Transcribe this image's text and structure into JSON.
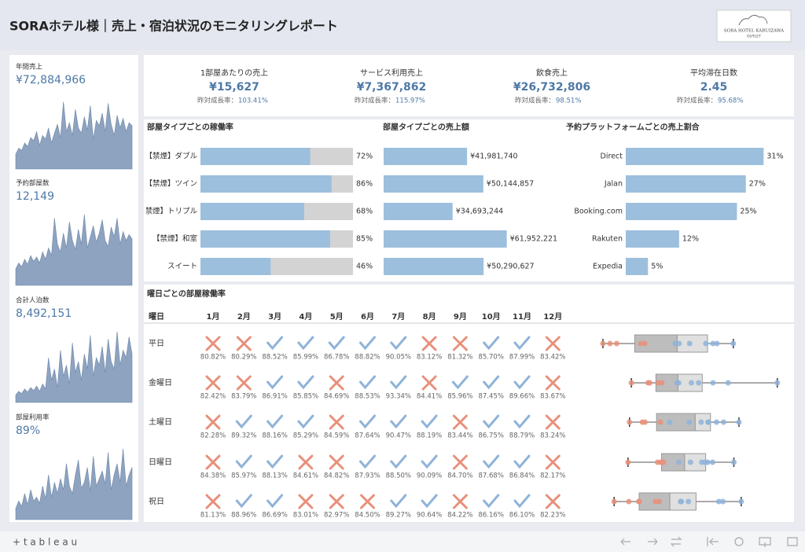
{
  "header": {
    "title": "SORAホテル様｜売上・宿泊状況のモニタリングレポート",
    "logo": "SORA HOTEL KARUIZAWA",
    "logo_sub": "OUTLET"
  },
  "kpis": [
    {
      "label": "1部屋あたりの売上",
      "value": "¥15,627",
      "growth_label": "昨対成長率：",
      "growth": "103.41%"
    },
    {
      "label": "サービス利用売上",
      "value": "¥7,367,862",
      "growth_label": "昨対成長率：",
      "growth": "115.97%"
    },
    {
      "label": "飲食売上",
      "value": "¥26,732,806",
      "growth_label": "昨対成長率：",
      "growth": "98.51%"
    },
    {
      "label": "平均滞在日数",
      "value": "2.45",
      "growth_label": "昨対成長率：",
      "growth": "95.68%"
    }
  ],
  "chart_data": [
    {
      "type": "area",
      "title": "年間売上",
      "total": "¥72,884,966",
      "ylim": [
        0,
        100
      ],
      "color": "#8da3c0",
      "values": [
        20,
        28,
        25,
        35,
        30,
        42,
        38,
        50,
        32,
        45,
        40,
        55,
        35,
        48,
        60,
        42,
        90,
        50,
        62,
        45,
        80,
        55,
        48,
        70,
        52,
        85,
        40,
        65,
        58,
        75,
        50,
        88,
        60,
        45,
        72,
        55,
        68,
        50,
        62,
        58
      ]
    },
    {
      "type": "area",
      "title": "予約部屋数",
      "total": "12,149",
      "ylim": [
        0,
        100
      ],
      "color": "#8da3c0",
      "values": [
        22,
        30,
        25,
        35,
        28,
        40,
        32,
        38,
        30,
        45,
        35,
        50,
        40,
        90,
        55,
        45,
        70,
        50,
        85,
        60,
        48,
        75,
        55,
        95,
        50,
        65,
        80,
        58,
        70,
        88,
        60,
        52,
        78,
        65,
        90,
        55,
        72,
        60,
        68,
        62
      ]
    },
    {
      "type": "area",
      "title": "合計人泊数",
      "total": "8,492,151",
      "ylim": [
        0,
        100
      ],
      "color": "#8da3c0",
      "values": [
        10,
        15,
        12,
        18,
        14,
        20,
        16,
        22,
        15,
        25,
        18,
        60,
        30,
        45,
        20,
        70,
        35,
        50,
        25,
        80,
        40,
        55,
        30,
        65,
        45,
        90,
        35,
        60,
        50,
        75,
        40,
        85,
        55,
        45,
        95,
        50,
        70,
        60,
        88,
        65
      ]
    },
    {
      "type": "area",
      "title": "部屋利用率",
      "total": "89%",
      "ylim": [
        0,
        100
      ],
      "color": "#8da3c0",
      "values": [
        15,
        25,
        18,
        35,
        20,
        40,
        25,
        30,
        22,
        45,
        28,
        60,
        30,
        50,
        35,
        55,
        40,
        75,
        45,
        35,
        60,
        80,
        42,
        50,
        70,
        38,
        85,
        45,
        55,
        65,
        48,
        90,
        40,
        60,
        75,
        50,
        95,
        45,
        60,
        70
      ]
    },
    {
      "type": "hbar",
      "title": "部屋タイプごとの稼働率",
      "categories": [
        "【禁煙】ダブル",
        "【禁煙】ツイン",
        "【禁煙】トリプル",
        "【禁煙】和室",
        "スイート"
      ],
      "values": [
        72,
        86,
        68,
        85,
        46
      ],
      "value_labels": [
        "72%",
        "86%",
        "68%",
        "85%",
        "46%"
      ],
      "xlim": [
        0,
        100
      ],
      "color": "#9dbfde",
      "track_color": "#d3d3d3"
    },
    {
      "type": "hbar",
      "title": "部屋タイプごとの売上額",
      "values": [
        41981740,
        50144857,
        34693244,
        61952221,
        50290627
      ],
      "value_labels": [
        "¥41,981,740",
        "¥50,144,857",
        "¥34,693,244",
        "¥61,952,221",
        "¥50,290,627"
      ],
      "xlim": [
        0,
        70000000
      ],
      "color": "#9dbfde"
    },
    {
      "type": "hbar",
      "title": "予約プラットフォームごとの売上割合",
      "categories": [
        "Direct",
        "Jalan",
        "Booking.com",
        "Rakuten",
        "Expedia"
      ],
      "values": [
        31,
        27,
        25,
        12,
        5
      ],
      "value_labels": [
        "31%",
        "27%",
        "25%",
        "12%",
        "5%"
      ],
      "xlim": [
        0,
        35
      ],
      "color": "#9dbfde"
    },
    {
      "type": "grid",
      "title": "曜日ごとの部屋稼働率",
      "row_header": "曜日",
      "columns": [
        "1月",
        "2月",
        "3月",
        "4月",
        "5月",
        "6月",
        "7月",
        "8月",
        "9月",
        "10月",
        "11月",
        "12月"
      ],
      "threshold": 85,
      "good_color": "#8fb3d9",
      "bad_color": "#e8907a",
      "box_xlim": [
        79,
        94
      ],
      "series": [
        {
          "name": "平日",
          "values": [
            80.82,
            80.29,
            88.52,
            85.99,
            86.78,
            88.82,
            90.05,
            83.12,
            81.32,
            85.7,
            87.99,
            83.42
          ],
          "value_labels": [
            "80.82%",
            "80.29%",
            "88.52%",
            "85.99%",
            "86.78%",
            "88.82%",
            "90.05%",
            "83.12%",
            "81.32%",
            "85.70%",
            "87.99%",
            "83.42%"
          ]
        },
        {
          "name": "金曜日",
          "values": [
            82.42,
            83.79,
            86.91,
            85.85,
            84.69,
            88.53,
            93.34,
            84.41,
            85.96,
            87.45,
            89.66,
            83.67
          ],
          "value_labels": [
            "82.42%",
            "83.79%",
            "86.91%",
            "85.85%",
            "84.69%",
            "88.53%",
            "93.34%",
            "84.41%",
            "85.96%",
            "87.45%",
            "89.66%",
            "83.67%"
          ]
        },
        {
          "name": "土曜日",
          "values": [
            82.28,
            89.32,
            88.16,
            85.29,
            84.59,
            87.64,
            90.47,
            88.19,
            83.44,
            86.75,
            88.79,
            83.24
          ],
          "value_labels": [
            "82.28%",
            "89.32%",
            "88.16%",
            "85.29%",
            "84.59%",
            "87.64%",
            "90.47%",
            "88.19%",
            "83.44%",
            "86.75%",
            "88.79%",
            "83.24%"
          ]
        },
        {
          "name": "日曜日",
          "values": [
            84.38,
            85.97,
            88.13,
            84.61,
            84.82,
            87.93,
            88.5,
            90.09,
            84.7,
            87.68,
            86.84,
            82.17
          ],
          "value_labels": [
            "84.38%",
            "85.97%",
            "88.13%",
            "84.61%",
            "84.82%",
            "87.93%",
            "88.50%",
            "90.09%",
            "84.70%",
            "87.68%",
            "86.84%",
            "82.17%"
          ]
        },
        {
          "name": "祝日",
          "values": [
            81.13,
            88.96,
            86.69,
            83.01,
            82.97,
            84.5,
            89.27,
            90.64,
            84.22,
            86.16,
            86.1,
            82.23
          ],
          "value_labels": [
            "81.13%",
            "88.96%",
            "86.69%",
            "83.01%",
            "82.97%",
            "84.50%",
            "89.27%",
            "90.64%",
            "84.22%",
            "86.16%",
            "86.10%",
            "82.23%"
          ]
        }
      ]
    }
  ],
  "footer": {
    "brand": "+ t a b l e a u"
  }
}
